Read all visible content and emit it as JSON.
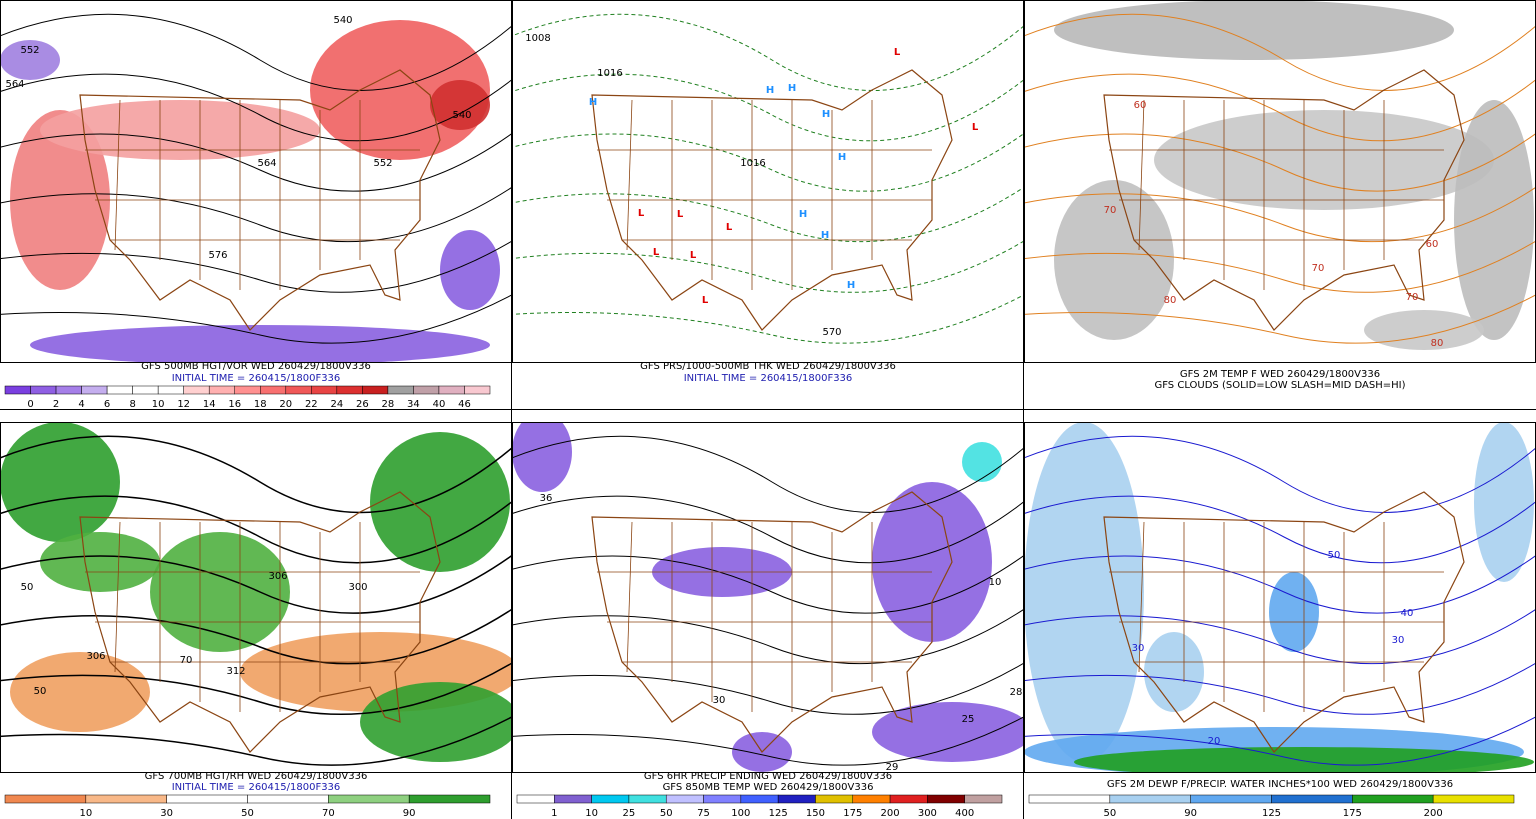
{
  "panels": [
    {
      "caption": [
        "GFS 500MB HGT/VOR WED 260429/1800V336",
        "INITIAL TIME = 260415/1800F336"
      ],
      "colorbar": [
        "0",
        "2",
        "4",
        "6",
        "8",
        "10",
        "12",
        "14",
        "16",
        "18",
        "20",
        "22",
        "24",
        "26",
        "28",
        "34",
        "40",
        "46"
      ],
      "map_labels": [
        "540",
        "552",
        "564",
        "564",
        "552",
        "576",
        "540"
      ]
    },
    {
      "caption": [
        "GFS PRS/1000-500MB THK WED 260429/1800V336",
        "INITIAL TIME = 260415/1800F336"
      ],
      "colorbar": [],
      "map_labels": [
        "H",
        "H",
        "H",
        "H",
        "H",
        "H",
        "H",
        "H",
        "L",
        "L",
        "L",
        "L",
        "L",
        "L",
        "L",
        "L",
        "1008",
        "1016",
        "1016",
        "570"
      ]
    },
    {
      "caption": [
        "GFS 2M TEMP F WED 260429/1800V336",
        "GFS CLOUDS (SOLID=LOW SLASH=MID DASH=HI)"
      ],
      "colorbar": [],
      "map_labels": [
        "60",
        "70",
        "80",
        "70",
        "70",
        "80",
        "60"
      ]
    },
    {
      "caption": [
        "GFS 700MB HGT/RH WED 260429/1800V336",
        "INITIAL TIME = 260415/1800F336"
      ],
      "colorbar": [
        "10",
        "30",
        "50",
        "70",
        "90"
      ],
      "map_labels": [
        "50",
        "306",
        "312",
        "306",
        "300",
        "50",
        "70"
      ]
    },
    {
      "caption": [
        "GFS 6HR PRECIP ENDING WED 260429/1800V336",
        "GFS 850MB TEMP WED 260429/1800V336"
      ],
      "colorbar": [
        "1",
        "10",
        "25",
        "50",
        "75",
        "100",
        "125",
        "150",
        "175",
        "200",
        "300",
        "400"
      ],
      "map_labels": [
        "36",
        "29",
        "25",
        "28",
        "10",
        "30"
      ]
    },
    {
      "caption": [
        "GFS 2M DEWP F/PRECIP. WATER INCHES*100 WED 260429/1800V336"
      ],
      "colorbar": [
        "50",
        "90",
        "125",
        "175",
        "200"
      ],
      "map_labels": [
        "30",
        "40",
        "30",
        "20",
        "50"
      ]
    }
  ]
}
